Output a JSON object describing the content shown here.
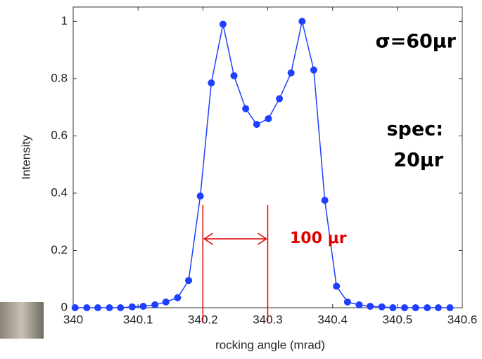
{
  "chart_data": {
    "type": "line",
    "x_label": "rocking angle (mrad)",
    "y_label": "Intensity",
    "x": [
      340.003,
      340.021,
      340.038,
      340.056,
      340.073,
      340.091,
      340.108,
      340.126,
      340.143,
      340.161,
      340.178,
      340.196,
      340.213,
      340.231,
      340.248,
      340.266,
      340.283,
      340.301,
      340.318,
      340.336,
      340.353,
      340.371,
      340.388,
      340.406,
      340.423,
      340.441,
      340.458,
      340.476,
      340.493,
      340.511,
      340.528,
      340.546,
      340.563,
      340.581
    ],
    "series": [
      {
        "color": "#1f3fff",
        "values": [
          0,
          0,
          0,
          0,
          0,
          0.003,
          0.005,
          0.01,
          0.02,
          0.035,
          0.095,
          0.39,
          0.785,
          0.99,
          0.81,
          0.695,
          0.64,
          0.66,
          0.73,
          0.82,
          1.0,
          0.83,
          0.375,
          0.075,
          0.02,
          0.01,
          0.005,
          0.003,
          0,
          0,
          0,
          0,
          0,
          0
        ]
      }
    ],
    "xlim": [
      340,
      340.6
    ],
    "xticks": [
      340,
      340.1,
      340.2,
      340.3,
      340.4,
      340.5,
      340.6
    ],
    "ylim": [
      0,
      1.05
    ],
    "yticks": [
      0,
      0.2,
      0.4,
      0.6,
      0.8,
      1
    ],
    "annotations": {
      "sigma": "σ=60μr",
      "spec": [
        "spec:",
        "20μr"
      ],
      "width_label": "100 μr",
      "width_span": [
        340.2,
        340.3
      ],
      "color": "#e00000"
    }
  }
}
